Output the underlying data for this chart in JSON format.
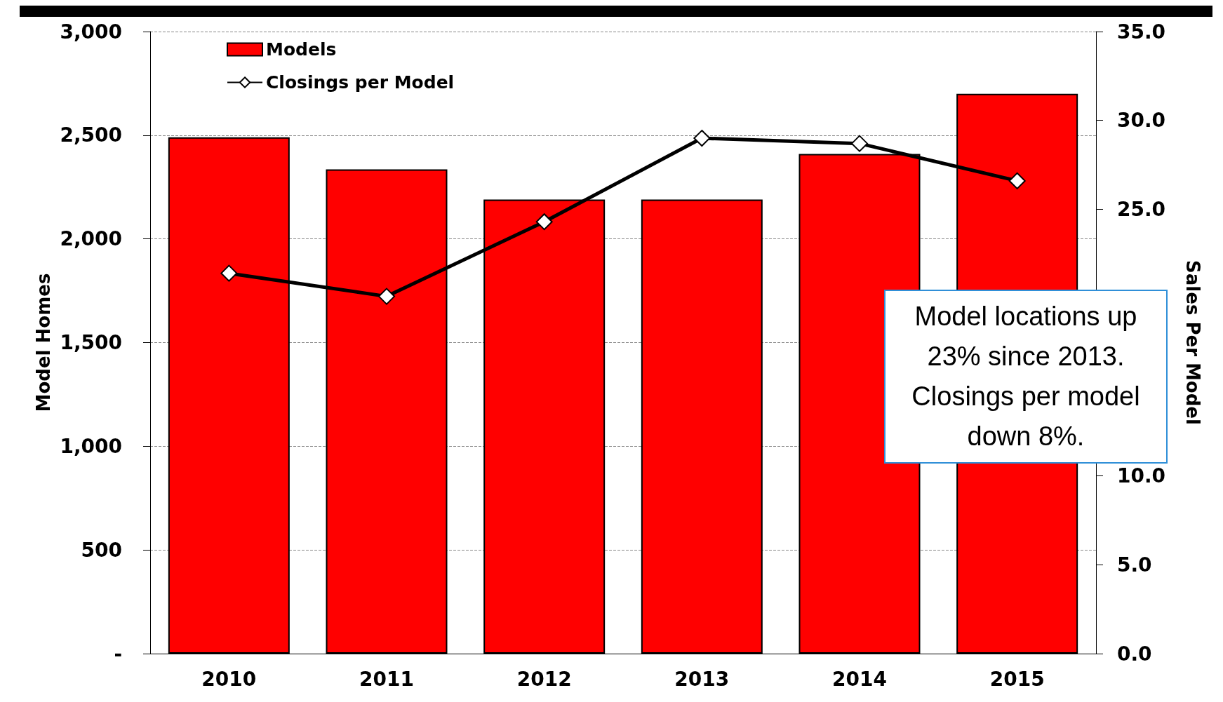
{
  "chart_data": {
    "type": "bar",
    "ylabel": "Model Homes",
    "y2label": "Sales Per Model",
    "categories": [
      "2010",
      "2011",
      "2012",
      "2013",
      "2014",
      "2015"
    ],
    "series": [
      {
        "name": "Models",
        "color": "#ff0000",
        "values": [
          2490,
          2335,
          2190,
          2190,
          2410,
          2700
        ]
      },
      {
        "name": "Closings per Model",
        "type": "line",
        "axis": "y2",
        "color": "#000000",
        "marker": "diamond",
        "values": [
          21.4,
          20.1,
          24.3,
          29.0,
          28.7,
          26.6
        ]
      }
    ],
    "ylim": [
      0,
      3000
    ],
    "yticks": [
      {
        "value": 0,
        "label": "-"
      },
      500,
      {
        "value": 1000,
        "label": "1,000"
      },
      {
        "value": 1500,
        "label": "1,500"
      },
      {
        "value": 2000,
        "label": "2,000"
      },
      {
        "value": 2500,
        "label": "2,500"
      },
      {
        "value": 3000,
        "label": "3,000"
      }
    ],
    "y2lim": [
      0,
      35
    ],
    "y2ticks": [
      {
        "value": 0,
        "label": "0.0"
      },
      {
        "value": 5,
        "label": "5.0"
      },
      {
        "value": 10,
        "label": "10.0"
      },
      {
        "value": 15,
        "label": null
      },
      {
        "value": 20,
        "label": null
      },
      {
        "value": 25,
        "label": "25.0"
      },
      {
        "value": 30,
        "label": "30.0"
      },
      {
        "value": 35,
        "label": "35.0"
      }
    ],
    "grid": "y",
    "legend": "top left",
    "annotations": [
      "Model locations up 23% since 2013. Closings per model down 8%."
    ]
  }
}
